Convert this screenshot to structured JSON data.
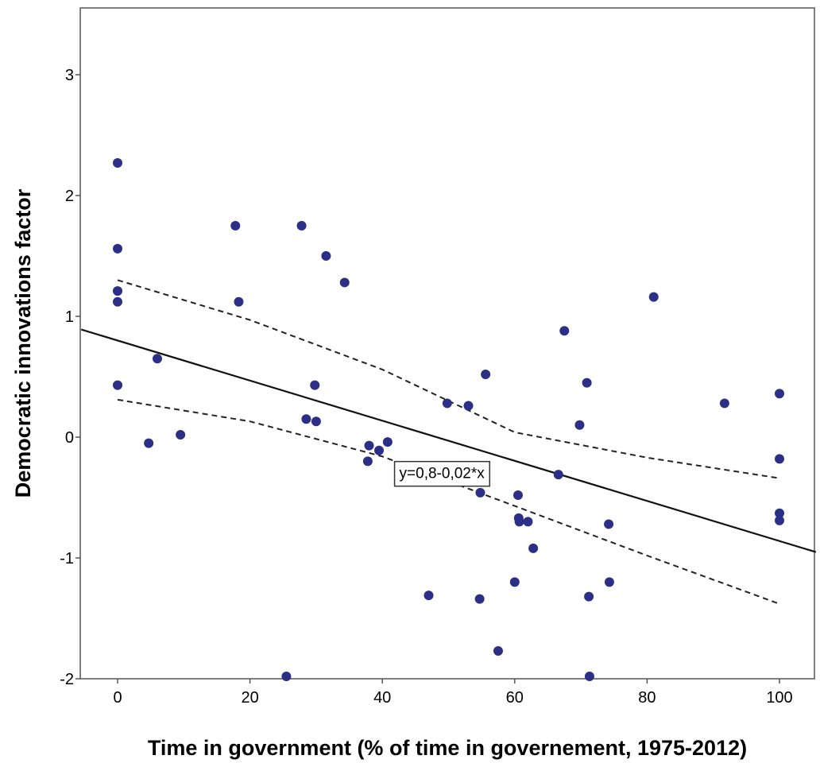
{
  "chart_data": {
    "type": "scatter",
    "xlabel": "Time in government (% of time in governement, 1975-2012)",
    "ylabel": "Democratic innovations factor",
    "xlim": [
      -5.5,
      105.5
    ],
    "ylim": [
      -2.0,
      3.5
    ],
    "x_ticks": [
      0,
      20,
      40,
      60,
      80,
      100
    ],
    "y_ticks": [
      -2,
      -1,
      0,
      1,
      2,
      3
    ],
    "x_tick_labels": [
      "0",
      "20",
      "40",
      "60",
      "80",
      "100"
    ],
    "y_tick_labels": [
      "-2",
      "-1",
      "0",
      "1",
      "2",
      "3"
    ],
    "grid": false,
    "point_color": "#2b2f86",
    "points": [
      {
        "x": 0,
        "y": 2.27
      },
      {
        "x": 0,
        "y": 1.56
      },
      {
        "x": 0,
        "y": 1.21
      },
      {
        "x": 0,
        "y": 1.12
      },
      {
        "x": 0,
        "y": 0.43
      },
      {
        "x": 4.7,
        "y": -0.05
      },
      {
        "x": 6.0,
        "y": 0.65
      },
      {
        "x": 9.5,
        "y": 0.02
      },
      {
        "x": 17.8,
        "y": 1.75
      },
      {
        "x": 18.3,
        "y": 1.12
      },
      {
        "x": 25.5,
        "y": -1.98
      },
      {
        "x": 27.8,
        "y": 1.75
      },
      {
        "x": 28.5,
        "y": 0.15
      },
      {
        "x": 29.8,
        "y": 0.43
      },
      {
        "x": 30.0,
        "y": 0.13
      },
      {
        "x": 31.5,
        "y": 1.5
      },
      {
        "x": 34.3,
        "y": 1.28
      },
      {
        "x": 37.8,
        "y": -0.2
      },
      {
        "x": 38.0,
        "y": -0.07
      },
      {
        "x": 39.5,
        "y": -0.11
      },
      {
        "x": 40.8,
        "y": -0.04
      },
      {
        "x": 47.0,
        "y": -1.31
      },
      {
        "x": 49.8,
        "y": 0.28
      },
      {
        "x": 53.0,
        "y": 0.26
      },
      {
        "x": 54.7,
        "y": -1.34
      },
      {
        "x": 54.8,
        "y": -0.46
      },
      {
        "x": 55.6,
        "y": 0.52
      },
      {
        "x": 57.5,
        "y": -1.77
      },
      {
        "x": 60.0,
        "y": -1.2
      },
      {
        "x": 60.5,
        "y": -0.48
      },
      {
        "x": 60.6,
        "y": -0.67
      },
      {
        "x": 60.7,
        "y": -0.7
      },
      {
        "x": 62.0,
        "y": -0.7
      },
      {
        "x": 62.8,
        "y": -0.92
      },
      {
        "x": 66.6,
        "y": -0.31
      },
      {
        "x": 67.5,
        "y": 0.88
      },
      {
        "x": 69.8,
        "y": 0.1
      },
      {
        "x": 70.9,
        "y": 0.45
      },
      {
        "x": 71.2,
        "y": -1.32
      },
      {
        "x": 71.3,
        "y": -1.98
      },
      {
        "x": 74.2,
        "y": -0.72
      },
      {
        "x": 74.3,
        "y": -1.2
      },
      {
        "x": 81.0,
        "y": 1.16
      },
      {
        "x": 91.7,
        "y": 0.28
      },
      {
        "x": 100,
        "y": 0.36
      },
      {
        "x": 100,
        "y": -0.18
      },
      {
        "x": 100,
        "y": -0.63
      },
      {
        "x": 100,
        "y": -0.69
      }
    ],
    "fit_line": {
      "intercept": 0.8,
      "slope": -0.0166,
      "x_range": [
        -5.5,
        105.5
      ]
    },
    "confidence_upper": [
      {
        "x": 0,
        "y": 1.3
      },
      {
        "x": 20,
        "y": 0.97
      },
      {
        "x": 40,
        "y": 0.56
      },
      {
        "x": 60,
        "y": 0.04
      },
      {
        "x": 80,
        "y": -0.17
      },
      {
        "x": 100,
        "y": -0.34
      }
    ],
    "confidence_lower": [
      {
        "x": 0,
        "y": 0.31
      },
      {
        "x": 20,
        "y": 0.13
      },
      {
        "x": 40,
        "y": -0.16
      },
      {
        "x": 60,
        "y": -0.57
      },
      {
        "x": 80,
        "y": -0.98
      },
      {
        "x": 100,
        "y": -1.38
      }
    ],
    "annotation": {
      "text": "y=0,8-0,02*x",
      "x": 49,
      "y": -0.34
    }
  }
}
